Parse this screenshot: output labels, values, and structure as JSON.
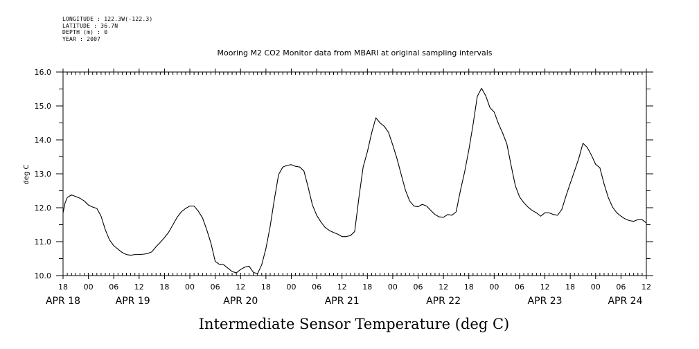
{
  "meta": {
    "longitude": "LONGITUDE : 122.3W(-122.3)",
    "latitude": "LATITUDE : 36.7N",
    "depth": "DEPTH (m) : 0",
    "year": "YEAR : 2007"
  },
  "chart_data": {
    "type": "line",
    "title": "Mooring M2 CO2 Monitor data from MBARI at original sampling intervals",
    "ylabel": "deg C",
    "xlabel": "Intermediate Sensor Temperature (deg C)",
    "ylim": [
      10.0,
      16.0
    ],
    "y_ticks": [
      "10.0",
      "11.0",
      "12.0",
      "13.0",
      "14.0",
      "15.0",
      "16.0"
    ],
    "xlim_hours": [
      0,
      138
    ],
    "x_start": "APR 18 18:00",
    "x_tick_labels": [
      "18",
      "00",
      "06",
      "12",
      "18",
      "00",
      "06",
      "12",
      "18",
      "00",
      "06",
      "12",
      "18",
      "00",
      "06",
      "12",
      "18",
      "00",
      "06",
      "12",
      "18",
      "00",
      "06",
      "12"
    ],
    "date_labels": [
      {
        "label": "APR 18",
        "hour": 0
      },
      {
        "label": "APR 19",
        "hour": 16.5
      },
      {
        "label": "APR 20",
        "hour": 42
      },
      {
        "label": "APR 21",
        "hour": 66
      },
      {
        "label": "APR 22",
        "hour": 90
      },
      {
        "label": "APR 23",
        "hour": 114
      },
      {
        "label": "APR 24",
        "hour": 133
      }
    ],
    "grid": false,
    "series": [
      {
        "values": [
          [
            0.0,
            11.85
          ],
          [
            0.5,
            12.15
          ],
          [
            1.0,
            12.3
          ],
          [
            2.0,
            12.38
          ],
          [
            3.0,
            12.33
          ],
          [
            4.0,
            12.28
          ],
          [
            5.0,
            12.2
          ],
          [
            6.0,
            12.08
          ],
          [
            7.0,
            12.02
          ],
          [
            8.0,
            11.98
          ],
          [
            9.0,
            11.75
          ],
          [
            10.0,
            11.35
          ],
          [
            11.0,
            11.05
          ],
          [
            12.0,
            10.88
          ],
          [
            13.0,
            10.78
          ],
          [
            14.0,
            10.68
          ],
          [
            15.0,
            10.62
          ],
          [
            16.0,
            10.6
          ],
          [
            17.0,
            10.62
          ],
          [
            18.0,
            10.62
          ],
          [
            19.0,
            10.63
          ],
          [
            20.0,
            10.65
          ],
          [
            21.0,
            10.7
          ],
          [
            22.0,
            10.85
          ],
          [
            23.0,
            10.98
          ],
          [
            24.0,
            11.12
          ],
          [
            25.0,
            11.28
          ],
          [
            26.0,
            11.5
          ],
          [
            27.0,
            11.72
          ],
          [
            28.0,
            11.88
          ],
          [
            29.0,
            11.98
          ],
          [
            30.0,
            12.05
          ],
          [
            31.0,
            12.05
          ],
          [
            32.0,
            11.9
          ],
          [
            33.0,
            11.7
          ],
          [
            34.0,
            11.35
          ],
          [
            35.0,
            10.95
          ],
          [
            36.0,
            10.42
          ],
          [
            37.0,
            10.33
          ],
          [
            38.0,
            10.32
          ],
          [
            39.0,
            10.22
          ],
          [
            40.0,
            10.12
          ],
          [
            41.0,
            10.08
          ],
          [
            42.0,
            10.18
          ],
          [
            43.0,
            10.25
          ],
          [
            44.0,
            10.28
          ],
          [
            45.0,
            10.1
          ],
          [
            46.0,
            10.05
          ],
          [
            47.0,
            10.32
          ],
          [
            48.0,
            10.8
          ],
          [
            49.0,
            11.45
          ],
          [
            50.0,
            12.25
          ],
          [
            51.0,
            12.98
          ],
          [
            52.0,
            13.2
          ],
          [
            53.0,
            13.25
          ],
          [
            54.0,
            13.27
          ],
          [
            55.0,
            13.22
          ],
          [
            56.0,
            13.2
          ],
          [
            57.0,
            13.08
          ],
          [
            58.0,
            12.6
          ],
          [
            59.0,
            12.08
          ],
          [
            60.0,
            11.78
          ],
          [
            61.0,
            11.58
          ],
          [
            62.0,
            11.42
          ],
          [
            63.0,
            11.33
          ],
          [
            64.0,
            11.27
          ],
          [
            65.0,
            11.22
          ],
          [
            66.0,
            11.15
          ],
          [
            67.0,
            11.15
          ],
          [
            68.0,
            11.18
          ],
          [
            69.0,
            11.3
          ],
          [
            70.0,
            12.3
          ],
          [
            71.0,
            13.2
          ],
          [
            72.0,
            13.65
          ],
          [
            73.0,
            14.2
          ],
          [
            74.0,
            14.65
          ],
          [
            75.0,
            14.5
          ],
          [
            76.0,
            14.4
          ],
          [
            77.0,
            14.22
          ],
          [
            78.0,
            13.85
          ],
          [
            79.0,
            13.45
          ],
          [
            80.0,
            12.98
          ],
          [
            81.0,
            12.52
          ],
          [
            82.0,
            12.2
          ],
          [
            83.0,
            12.05
          ],
          [
            84.0,
            12.03
          ],
          [
            85.0,
            12.1
          ],
          [
            86.0,
            12.05
          ],
          [
            87.0,
            11.92
          ],
          [
            88.0,
            11.8
          ],
          [
            89.0,
            11.73
          ],
          [
            90.0,
            11.72
          ],
          [
            91.0,
            11.8
          ],
          [
            92.0,
            11.78
          ],
          [
            93.0,
            11.88
          ],
          [
            94.0,
            12.5
          ],
          [
            95.0,
            13.05
          ],
          [
            96.0,
            13.7
          ],
          [
            97.0,
            14.45
          ],
          [
            98.0,
            15.28
          ],
          [
            99.0,
            15.52
          ],
          [
            100.0,
            15.3
          ],
          [
            101.0,
            14.95
          ],
          [
            102.0,
            14.82
          ],
          [
            103.0,
            14.48
          ],
          [
            104.0,
            14.2
          ],
          [
            105.0,
            13.88
          ],
          [
            106.0,
            13.25
          ],
          [
            107.0,
            12.65
          ],
          [
            108.0,
            12.32
          ],
          [
            109.0,
            12.15
          ],
          [
            110.0,
            12.02
          ],
          [
            111.0,
            11.92
          ],
          [
            112.0,
            11.85
          ],
          [
            113.0,
            11.75
          ],
          [
            114.0,
            11.85
          ],
          [
            115.0,
            11.85
          ],
          [
            116.0,
            11.8
          ],
          [
            117.0,
            11.78
          ],
          [
            118.0,
            11.95
          ],
          [
            119.0,
            12.35
          ],
          [
            120.0,
            12.72
          ],
          [
            121.0,
            13.08
          ],
          [
            122.0,
            13.45
          ],
          [
            123.0,
            13.9
          ],
          [
            124.0,
            13.78
          ],
          [
            125.0,
            13.55
          ],
          [
            126.0,
            13.28
          ],
          [
            127.0,
            13.18
          ],
          [
            128.0,
            12.7
          ],
          [
            129.0,
            12.3
          ],
          [
            130.0,
            12.02
          ],
          [
            131.0,
            11.85
          ],
          [
            132.0,
            11.75
          ],
          [
            133.0,
            11.67
          ],
          [
            134.0,
            11.62
          ],
          [
            135.0,
            11.6
          ],
          [
            136.0,
            11.65
          ],
          [
            137.0,
            11.65
          ],
          [
            138.0,
            11.55
          ]
        ]
      }
    ]
  }
}
